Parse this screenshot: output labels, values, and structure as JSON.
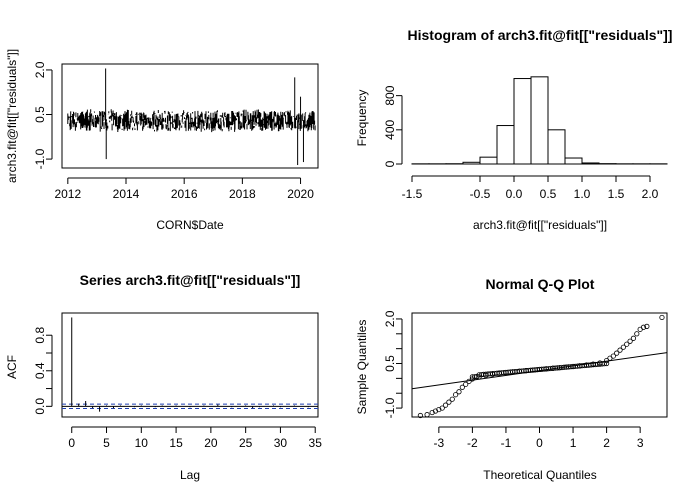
{
  "chart_data": [
    {
      "type": "line",
      "title": "",
      "xlabel": "CORN$Date",
      "ylabel": "arch3.fit@fit[[\"residuals\"]]",
      "x_tick_labels": [
        "2012",
        "2014",
        "2016",
        "2018",
        "2020"
      ],
      "y_tick_labels": [
        "-1.0",
        "0.5",
        "2.0"
      ],
      "xlim": [
        2011.8,
        2020.6
      ],
      "ylim": [
        -1.3,
        2.2
      ],
      "series": [
        {
          "values_summary": "daily residual series from 2012 to mid-2020, centered near 0.3 with typical band about 0.0 to 0.6",
          "x": [
            2012.0,
            2013.3,
            2013.32,
            2013.5,
            2014.5,
            2016.5,
            2018.5,
            2019.8,
            2019.9,
            2020.0,
            2020.1,
            2020.3,
            2020.5
          ],
          "y": [
            0.3,
            2.05,
            -1.0,
            0.3,
            0.3,
            0.3,
            0.3,
            1.75,
            -1.2,
            1.1,
            -1.1,
            0.2,
            0.3
          ]
        }
      ]
    },
    {
      "type": "bar",
      "title": "Histogram of arch3.fit@fit[[\"residuals\"]]",
      "xlabel": "arch3.fit@fit[[\"residuals\"]]",
      "ylabel": "Frequency",
      "x_tick_labels": [
        "-1.5",
        "-0.5",
        "0.0",
        "0.5",
        "1.0",
        "1.5",
        "2.0"
      ],
      "y_tick_labels": [
        "0",
        "400",
        "800"
      ],
      "xlim": [
        -1.5,
        2.25
      ],
      "ylim": [
        0,
        1100
      ],
      "bin_edges": [
        -1.5,
        -1.25,
        -1.0,
        -0.75,
        -0.5,
        -0.25,
        0.0,
        0.25,
        0.5,
        0.75,
        1.0,
        1.25,
        1.5,
        1.75,
        2.0,
        2.25
      ],
      "values": [
        2,
        2,
        3,
        20,
        80,
        450,
        1000,
        1020,
        400,
        70,
        12,
        4,
        2,
        2,
        2
      ]
    },
    {
      "type": "bar",
      "title": "Series  arch3.fit@fit[[\"residuals\"]]",
      "xlabel": "Lag",
      "ylabel": "ACF",
      "x_tick_labels": [
        "0",
        "5",
        "10",
        "15",
        "20",
        "25",
        "30",
        "35"
      ],
      "y_tick_labels": [
        "0.0",
        "0.4",
        "0.8"
      ],
      "xlim": [
        -1.4,
        35.4
      ],
      "ylim": [
        -0.12,
        1.05
      ],
      "confidence_bound": 0.025,
      "lags": [
        0,
        1,
        2,
        3,
        4,
        5,
        6,
        7,
        8,
        9,
        10,
        11,
        12,
        13,
        14,
        15,
        16,
        17,
        18,
        19,
        20,
        21,
        22,
        23,
        24,
        25,
        26,
        27,
        28,
        29,
        30,
        31,
        32,
        33,
        34,
        35
      ],
      "values": [
        1.0,
        0.03,
        0.06,
        -0.02,
        -0.06,
        0.01,
        -0.02,
        0.01,
        0.0,
        -0.01,
        0.01,
        0.0,
        -0.01,
        0.01,
        0.0,
        0.01,
        0.0,
        -0.01,
        0.0,
        0.01,
        0.0,
        0.02,
        0.0,
        -0.01,
        0.0,
        0.01,
        -0.02,
        -0.01,
        0.0,
        0.01,
        -0.01,
        0.0,
        0.01,
        0.0,
        -0.01,
        0.0
      ]
    },
    {
      "type": "scatter",
      "title": "Normal Q-Q Plot",
      "xlabel": "Theoretical Quantiles",
      "ylabel": "Sample Quantiles",
      "x_tick_labels": [
        "-3",
        "-2",
        "-1",
        "0",
        "1",
        "2",
        "3"
      ],
      "y_tick_labels": [
        "-1.0",
        "0.5",
        "2.0"
      ],
      "xlim": [
        -3.8,
        3.8
      ],
      "ylim": [
        -1.3,
        2.2
      ],
      "reference_line": {
        "intercept": 0.26,
        "slope": 0.16
      },
      "points": [
        [
          -3.55,
          -1.25
        ],
        [
          -3.35,
          -1.22
        ],
        [
          -3.2,
          -1.15
        ],
        [
          -3.1,
          -1.1
        ],
        [
          -3.0,
          -1.05
        ],
        [
          -2.9,
          -1.0
        ],
        [
          -2.8,
          -0.9
        ],
        [
          -2.7,
          -0.8
        ],
        [
          -2.6,
          -0.7
        ],
        [
          -2.5,
          -0.55
        ],
        [
          -2.4,
          -0.45
        ],
        [
          -2.3,
          -0.3
        ],
        [
          -2.2,
          -0.2
        ],
        [
          -2.1,
          -0.1
        ],
        [
          -2.0,
          -0.02
        ],
        [
          -1.8,
          0.05
        ],
        [
          -1.6,
          0.1
        ],
        [
          -1.4,
          0.14
        ],
        [
          -1.2,
          0.17
        ],
        [
          -1.0,
          0.2
        ],
        [
          -0.8,
          0.22
        ],
        [
          -0.6,
          0.24
        ],
        [
          -0.4,
          0.26
        ],
        [
          -0.2,
          0.28
        ],
        [
          0.0,
          0.3
        ],
        [
          0.2,
          0.32
        ],
        [
          0.4,
          0.34
        ],
        [
          0.6,
          0.36
        ],
        [
          0.8,
          0.38
        ],
        [
          1.0,
          0.4
        ],
        [
          1.2,
          0.42
        ],
        [
          1.4,
          0.45
        ],
        [
          1.6,
          0.48
        ],
        [
          1.8,
          0.52
        ],
        [
          2.0,
          0.6
        ],
        [
          2.1,
          0.68
        ],
        [
          2.2,
          0.75
        ],
        [
          2.3,
          0.85
        ],
        [
          2.4,
          0.95
        ],
        [
          2.5,
          1.05
        ],
        [
          2.6,
          1.15
        ],
        [
          2.7,
          1.25
        ],
        [
          2.8,
          1.35
        ],
        [
          2.9,
          1.5
        ],
        [
          3.0,
          1.65
        ],
        [
          3.1,
          1.72
        ],
        [
          3.2,
          1.75
        ],
        [
          3.65,
          2.05
        ]
      ]
    }
  ]
}
